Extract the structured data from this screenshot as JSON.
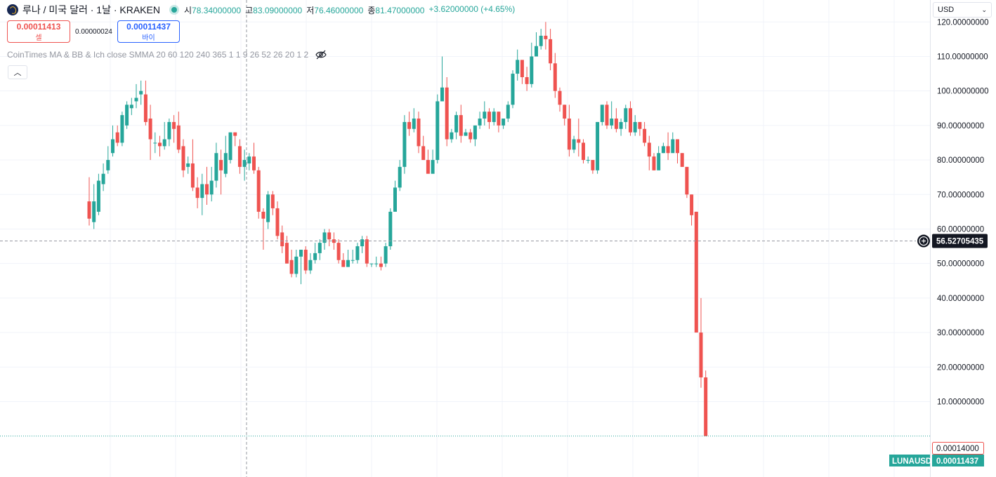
{
  "header": {
    "symbol_title": "루나 / 미국 달러 · 1날 · KRAKEN",
    "ohlc": {
      "open_label": "시",
      "open": "78.34000000",
      "high_label": "고",
      "high": "83.09000000",
      "low_label": "저",
      "low": "76.46000000",
      "close_label": "종",
      "close": "81.47000000",
      "change": "+3.62000000 (+4.65%)"
    }
  },
  "trade": {
    "sell_price": "0.00011413",
    "sell_label": "셀",
    "spread": "0.00000024",
    "buy_price": "0.00011437",
    "buy_label": "바이"
  },
  "indicator": {
    "label": "CoinTimes MA & BB & Ich close SMMA 20 60 120 240 365 1 1 9 26 52 26 20 1 2"
  },
  "currency": {
    "value": "USD"
  },
  "crosshair_price": "56.52705435",
  "price_badges": {
    "high_marker": "0.00014000",
    "symbol": "LUNAUSD",
    "last_price": "0.00011437"
  },
  "colors": {
    "up": "#26a69a",
    "down": "#ef5350",
    "grid": "#f0f3fa",
    "crosshair": "#9598a1",
    "buy": "#2962ff"
  },
  "chart_data": {
    "type": "candlestick",
    "ylim": [
      -1,
      123
    ],
    "y_ticks": [
      "10.00000000",
      "20.00000000",
      "30.00000000",
      "40.00000000",
      "50.00000000",
      "60.00000000",
      "70.00000000",
      "80.00000000",
      "90.00000000",
      "100.00000000",
      "110.00000000",
      "120.00000000"
    ],
    "y_tick_values": [
      10,
      20,
      30,
      40,
      50,
      60,
      70,
      80,
      90,
      100,
      110,
      120
    ],
    "candles": [
      [
        68,
        63,
        75,
        61
      ],
      [
        62,
        68,
        73,
        60
      ],
      [
        65,
        74,
        76,
        64
      ],
      [
        73,
        76,
        79,
        71
      ],
      [
        77,
        80,
        84,
        76
      ],
      [
        82,
        86,
        90,
        81
      ],
      [
        88,
        85,
        90,
        84
      ],
      [
        85,
        93,
        94,
        84
      ],
      [
        90,
        96,
        97,
        89
      ],
      [
        95,
        96,
        98,
        93
      ],
      [
        97,
        98,
        102,
        95
      ],
      [
        99,
        100,
        103,
        96
      ],
      [
        99,
        91,
        103,
        90
      ],
      [
        92,
        86,
        96,
        80
      ],
      [
        85,
        85,
        88,
        82
      ],
      [
        85,
        84,
        87,
        81
      ],
      [
        84,
        86,
        91,
        83
      ],
      [
        86,
        91,
        92,
        84
      ],
      [
        91,
        89,
        93,
        85
      ],
      [
        90,
        83,
        94,
        82
      ],
      [
        84,
        77,
        86,
        75
      ],
      [
        78,
        79,
        81,
        76
      ],
      [
        79,
        72,
        86,
        71
      ],
      [
        72,
        69,
        75,
        66
      ],
      [
        69,
        73,
        76,
        64
      ],
      [
        73,
        70,
        78,
        67
      ],
      [
        70,
        74,
        78,
        68
      ],
      [
        74,
        82,
        85,
        72
      ],
      [
        80,
        77,
        83,
        70
      ],
      [
        76,
        82,
        87,
        75
      ],
      [
        80,
        88,
        88,
        79
      ],
      [
        88,
        87,
        88,
        84
      ],
      [
        84,
        78,
        86,
        76
      ],
      [
        78,
        80,
        83,
        74
      ],
      [
        79,
        81,
        82,
        77
      ],
      [
        81,
        77,
        85,
        76
      ],
      [
        77,
        65,
        78,
        63
      ],
      [
        65,
        63,
        66,
        54
      ],
      [
        62,
        70,
        71,
        60
      ],
      [
        70,
        66,
        71,
        64
      ],
      [
        66,
        58,
        68,
        57
      ],
      [
        59,
        55,
        61,
        53
      ],
      [
        56,
        50,
        58,
        50
      ],
      [
        51,
        47,
        54,
        46
      ],
      [
        47,
        52,
        54,
        46
      ],
      [
        52,
        54,
        54,
        44
      ],
      [
        54,
        48,
        55,
        47
      ],
      [
        48,
        51,
        53,
        47
      ],
      [
        51,
        53,
        56,
        50
      ],
      [
        53,
        56,
        57,
        51
      ],
      [
        56,
        59,
        60,
        54
      ],
      [
        59,
        57,
        60,
        55
      ],
      [
        57,
        56,
        59,
        54
      ],
      [
        56,
        51,
        57,
        50
      ],
      [
        51,
        49,
        53,
        49
      ],
      [
        49,
        51,
        54,
        49
      ],
      [
        51,
        51,
        54,
        50
      ],
      [
        51,
        55,
        56,
        50
      ],
      [
        55,
        57,
        58,
        53
      ],
      [
        57,
        50,
        58,
        49
      ],
      [
        50,
        50,
        50,
        49
      ],
      [
        50,
        50,
        52,
        49
      ],
      [
        50,
        49,
        52,
        48
      ],
      [
        50,
        55,
        56,
        49
      ],
      [
        55,
        65,
        66,
        54
      ],
      [
        65,
        72,
        74,
        66
      ],
      [
        72,
        78,
        80,
        71
      ],
      [
        78,
        91,
        93,
        76
      ],
      [
        91,
        89,
        94,
        87
      ],
      [
        89,
        92,
        95,
        88
      ],
      [
        92,
        84,
        94,
        82
      ],
      [
        84,
        80,
        87,
        80
      ],
      [
        80,
        76,
        83,
        77
      ],
      [
        76,
        80,
        83,
        77
      ],
      [
        80,
        97,
        99,
        79
      ],
      [
        97,
        101,
        110,
        99
      ],
      [
        101,
        86,
        104,
        84
      ],
      [
        86,
        88,
        89,
        85
      ],
      [
        88,
        93,
        94,
        86
      ],
      [
        93,
        87,
        96,
        85
      ],
      [
        87,
        88,
        89,
        87
      ],
      [
        88,
        86,
        89,
        85
      ],
      [
        86,
        90,
        90,
        84
      ],
      [
        90,
        92,
        94,
        89
      ],
      [
        92,
        94,
        97,
        90
      ],
      [
        94,
        91,
        95,
        89
      ],
      [
        91,
        94,
        95,
        90
      ],
      [
        94,
        90,
        94,
        88
      ],
      [
        90,
        92,
        92,
        89
      ],
      [
        92,
        96,
        97,
        91
      ],
      [
        96,
        105,
        106,
        95
      ],
      [
        105,
        109,
        112,
        103
      ],
      [
        109,
        104,
        108,
        102
      ],
      [
        104,
        102,
        107,
        100
      ],
      [
        102,
        110,
        114,
        101
      ],
      [
        110,
        113,
        117,
        111
      ],
      [
        113,
        116,
        118,
        112
      ],
      [
        116,
        115,
        120,
        112
      ],
      [
        115,
        108,
        118,
        106
      ],
      [
        108,
        100,
        111,
        98
      ],
      [
        100,
        96,
        101,
        94
      ],
      [
        96,
        92,
        96,
        90
      ],
      [
        92,
        83,
        96,
        81
      ],
      [
        83,
        86,
        87,
        82
      ],
      [
        86,
        85,
        92,
        81
      ],
      [
        85,
        80,
        86,
        79
      ],
      [
        80,
        80,
        81,
        79
      ],
      [
        80,
        77,
        80,
        76
      ],
      [
        77,
        91,
        91,
        76
      ],
      [
        91,
        96,
        96,
        90
      ],
      [
        96,
        90,
        97,
        89
      ],
      [
        90,
        92,
        97,
        89
      ],
      [
        92,
        89,
        95,
        88
      ],
      [
        89,
        91,
        92,
        87
      ],
      [
        91,
        95,
        96,
        89
      ],
      [
        95,
        88,
        97,
        87
      ],
      [
        88,
        91,
        93,
        87
      ],
      [
        91,
        89,
        91,
        87
      ],
      [
        89,
        85,
        91,
        84
      ],
      [
        85,
        81,
        87,
        77
      ],
      [
        81,
        77,
        82,
        77
      ],
      [
        77,
        82,
        84,
        79
      ],
      [
        82,
        84,
        85,
        82
      ],
      [
        84,
        82,
        88,
        80
      ],
      [
        82,
        86,
        88,
        83
      ],
      [
        86,
        82,
        86,
        79
      ],
      [
        82,
        78,
        82,
        78
      ],
      [
        78,
        70,
        78,
        69
      ],
      [
        70,
        64,
        70,
        61
      ],
      [
        65,
        30,
        65,
        30
      ],
      [
        30,
        17,
        40,
        14
      ],
      [
        17,
        0.0001,
        19,
        0
      ]
    ]
  }
}
